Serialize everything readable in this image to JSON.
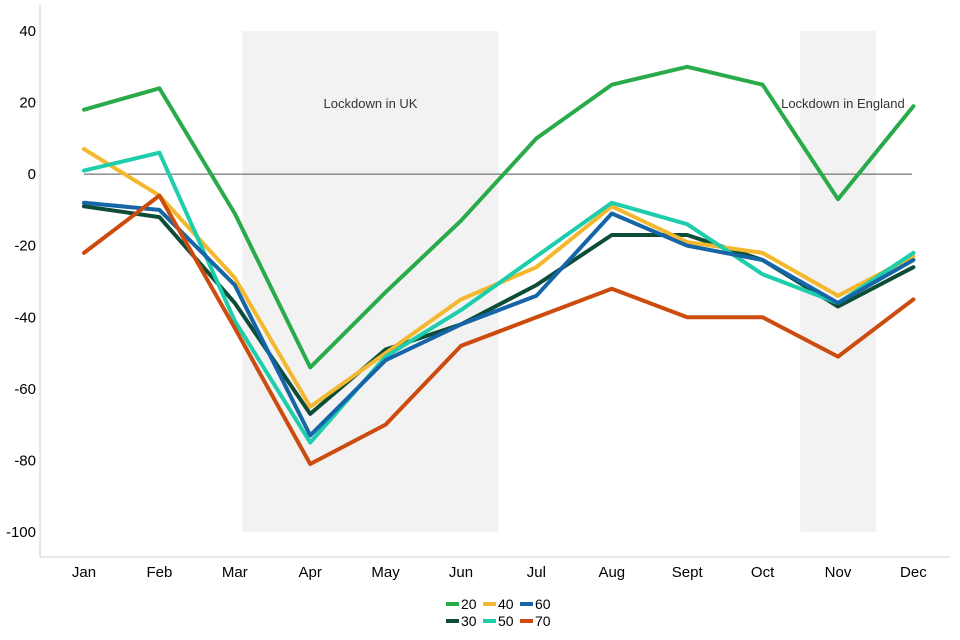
{
  "chart_data": {
    "type": "line",
    "title": "",
    "xlabel": "",
    "ylabel": "",
    "categories": [
      "Jan",
      "Feb",
      "Mar",
      "Apr",
      "May",
      "Jun",
      "Jul",
      "Aug",
      "Sept",
      "Oct",
      "Nov",
      "Dec"
    ],
    "y_ticks": [
      "40",
      "20",
      "0",
      "-20",
      "-40",
      "-60",
      "-80",
      "-100"
    ],
    "ylim": [
      -100,
      40
    ],
    "grid": false,
    "legend_position": "bottom-center",
    "shaded_periods": [
      {
        "label": "Lockdown in UK",
        "from": 2.1,
        "to": 5.5
      },
      {
        "label": "Lockdown in England",
        "from": 9.5,
        "to": 10.5
      }
    ],
    "series": [
      {
        "name": "20",
        "color": "#2aab4a",
        "values": [
          18,
          24,
          -11,
          -54,
          -33,
          -13,
          10,
          25,
          30,
          25,
          -7,
          19
        ]
      },
      {
        "name": "30",
        "color": "#0d4d38",
        "values": [
          -9,
          -12,
          -36,
          -67,
          -49,
          -42,
          -31,
          -17,
          -17,
          -24,
          -37,
          -26
        ]
      },
      {
        "name": "40",
        "color": "#f4b82f",
        "values": [
          7,
          -6,
          -29,
          -65,
          -50,
          -35,
          -26,
          -9,
          -19,
          -22,
          -34,
          -23
        ]
      },
      {
        "name": "50",
        "color": "#1ecdab",
        "values": [
          1,
          6,
          -41,
          -75,
          -51,
          -38,
          -23,
          -8,
          -14,
          -28,
          -36,
          -22
        ]
      },
      {
        "name": "60",
        "color": "#1565a8",
        "values": [
          -8,
          -10,
          -31,
          -73,
          -52,
          -42,
          -34,
          -11,
          -20,
          -24,
          -36,
          -24
        ]
      },
      {
        "name": "70",
        "color": "#cc4c0f",
        "values": [
          -22,
          -6,
          -43,
          -81,
          -70,
          -48,
          -40,
          -32,
          -40,
          -40,
          -51,
          -35
        ]
      }
    ]
  }
}
